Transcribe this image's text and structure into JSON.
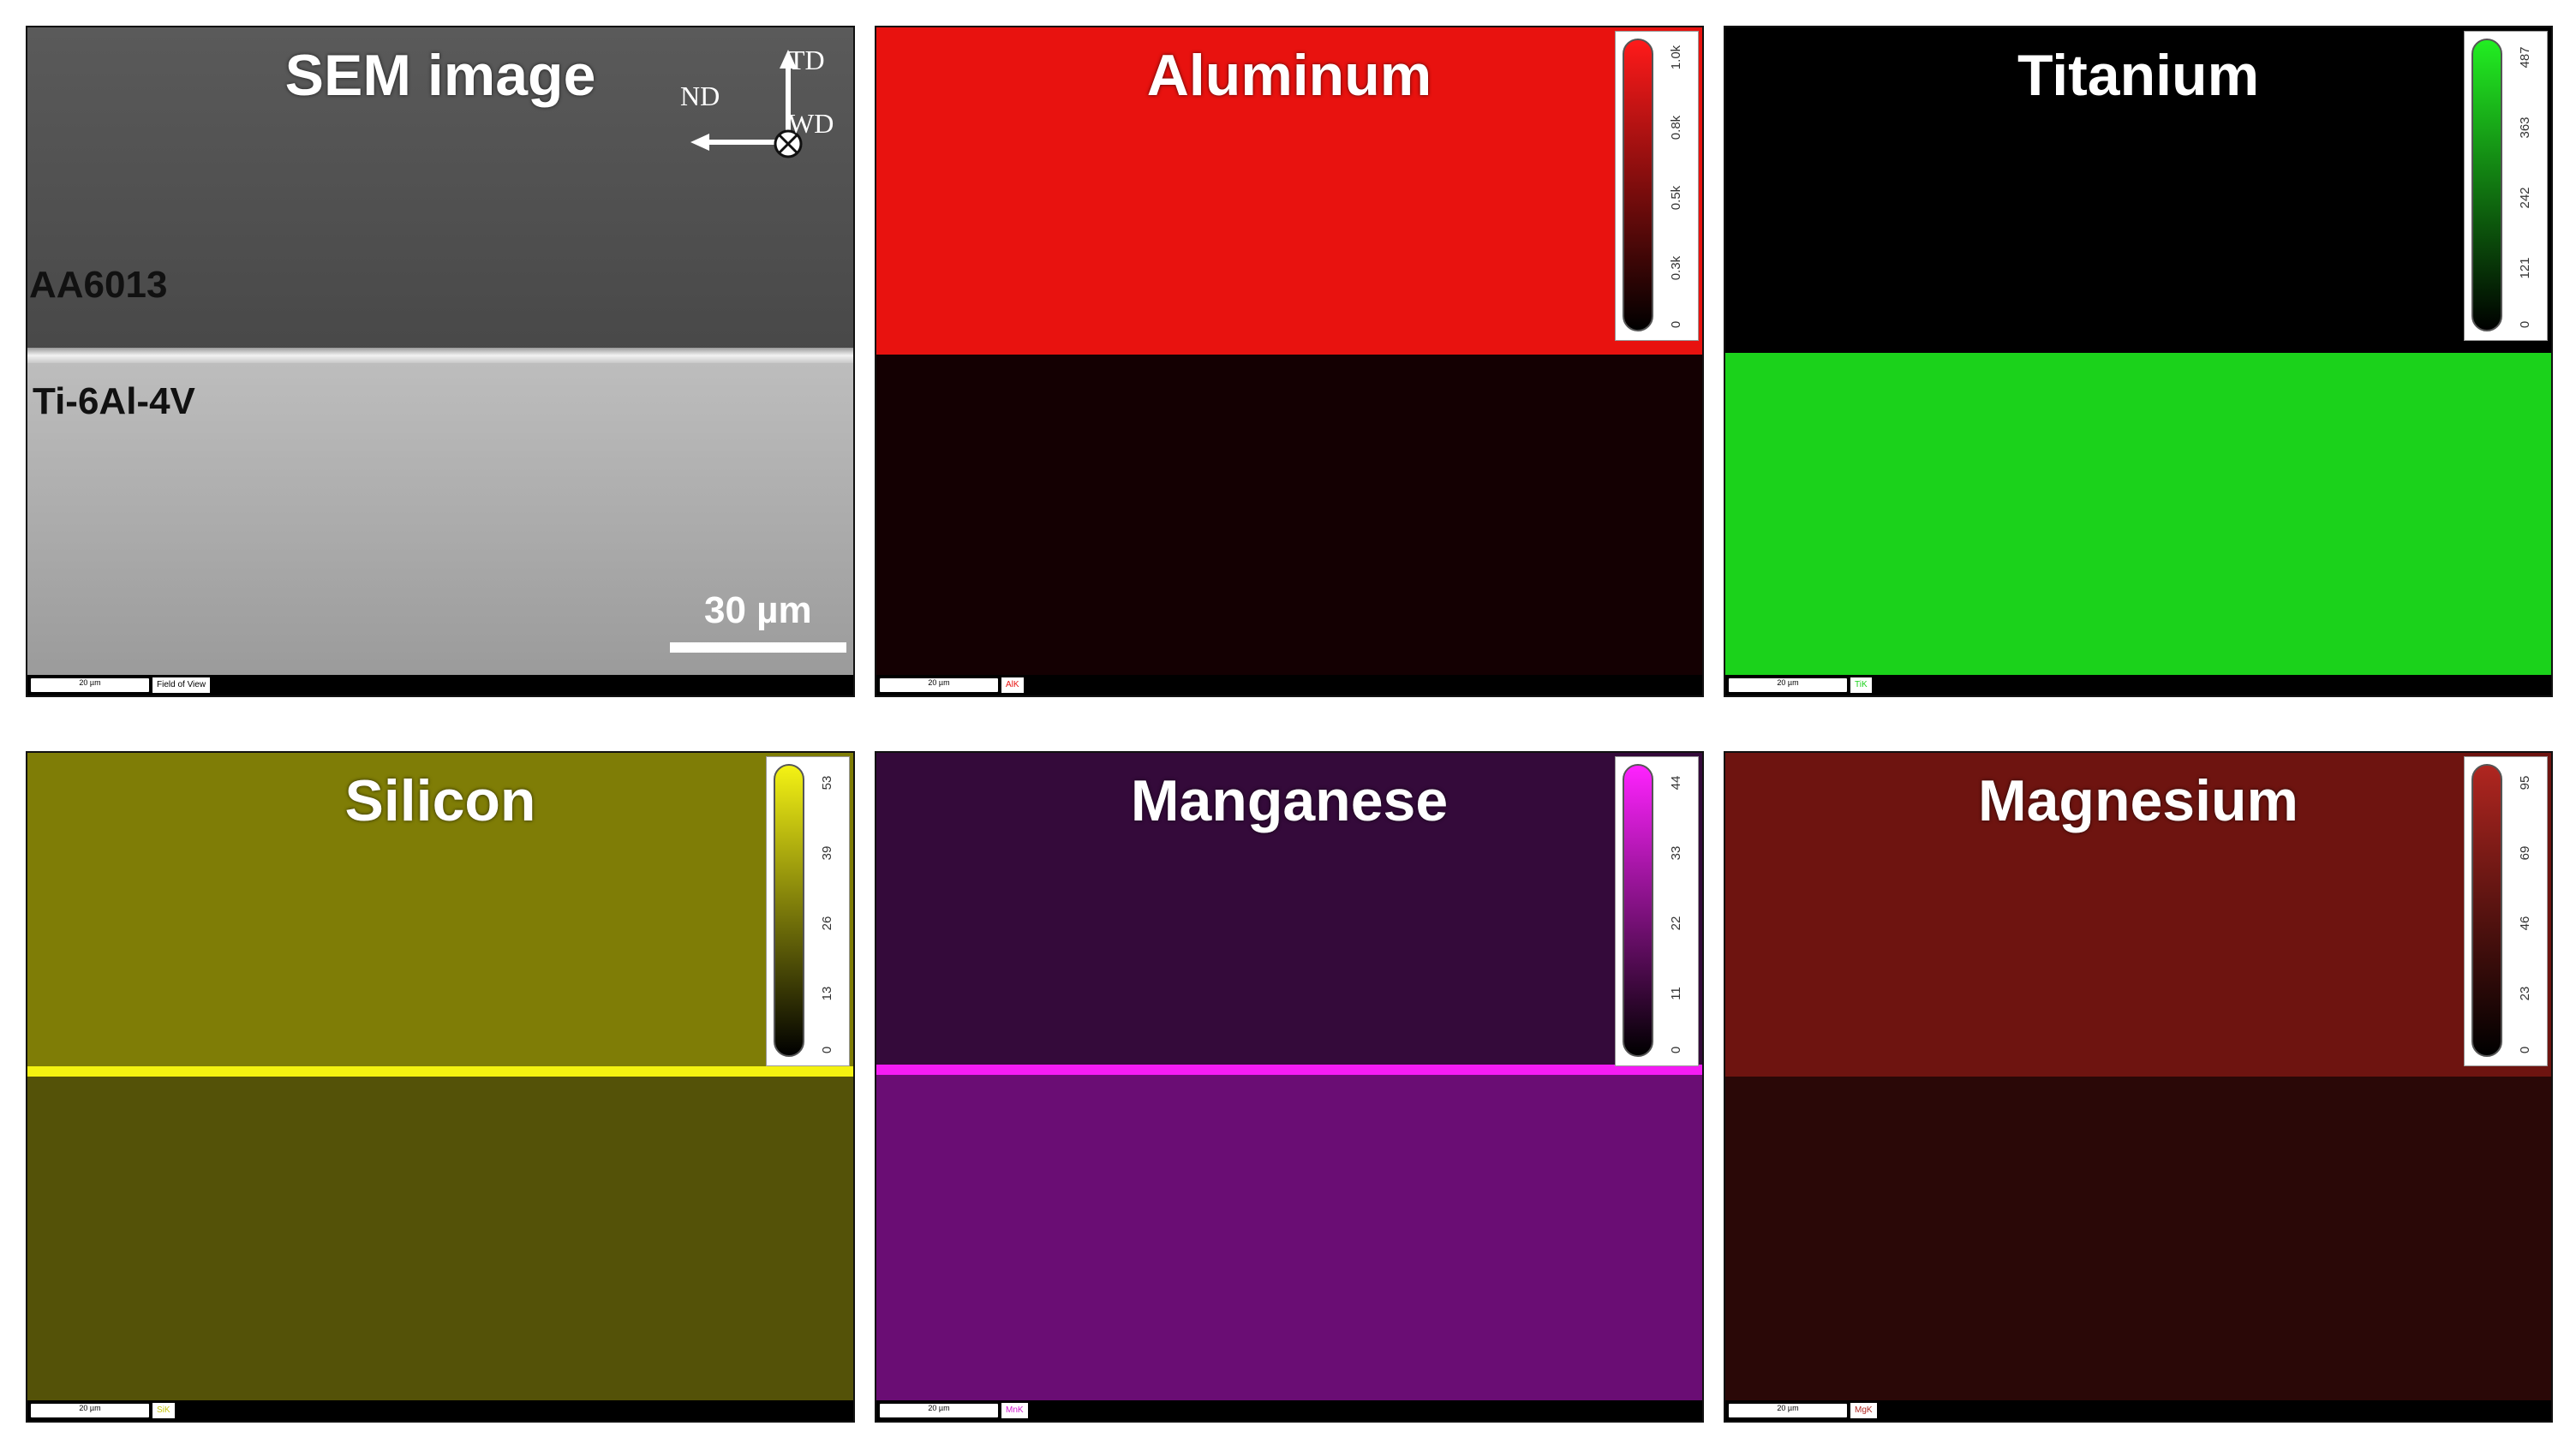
{
  "panels": [
    {
      "id": "sem",
      "title": "SEM image",
      "label_top": "AA6013",
      "label_bottom": "Ti-6Al-4V",
      "scale_bar": "30 µm",
      "footer_scale": "20 µm",
      "footer_tag": "Field of View",
      "axes": {
        "up": "TD",
        "left": "ND",
        "into": "WD"
      }
    },
    {
      "id": "aluminum",
      "title": "Aluminum",
      "footer_scale": "20 µm",
      "footer_tag": "AlK",
      "colors": {
        "top": "#e8120f",
        "bottom": "#140002",
        "scale_top": "#ff1a1a"
      },
      "scale_ticks": [
        "1.0k",
        "0.8k",
        "0.5k",
        "0.3k",
        "0"
      ]
    },
    {
      "id": "titanium",
      "title": "Titanium",
      "footer_scale": "20 µm",
      "footer_tag": "TiK",
      "colors": {
        "top": "#000000",
        "bottom": "#1bd21b",
        "scale_top": "#22ee22"
      },
      "scale_ticks": [
        "487",
        "363",
        "242",
        "121",
        "0"
      ]
    },
    {
      "id": "silicon",
      "title": "Silicon",
      "footer_scale": "20 µm",
      "footer_tag": "SiK",
      "colors": {
        "top": "#7f7d06",
        "bottom": "#545208",
        "line": "#f4f210",
        "scale_top": "#f4f214"
      },
      "scale_ticks": [
        "53",
        "39",
        "26",
        "13",
        "0"
      ]
    },
    {
      "id": "manganese",
      "title": "Manganese",
      "footer_scale": "20 µm",
      "footer_tag": "MnK",
      "colors": {
        "top": "#340a3a",
        "bottom": "#6a0d74",
        "line": "#f41cf4",
        "scale_top": "#ff22ff"
      },
      "scale_ticks": [
        "44",
        "33",
        "22",
        "11",
        "0"
      ]
    },
    {
      "id": "magnesium",
      "title": "Magnesium",
      "footer_scale": "20 µm",
      "footer_tag": "MgK",
      "colors": {
        "top": "#6e1410",
        "bottom": "#2a0807",
        "scale_top": "#b02620"
      },
      "scale_ticks": [
        "95",
        "69",
        "46",
        "23",
        "0"
      ]
    }
  ]
}
